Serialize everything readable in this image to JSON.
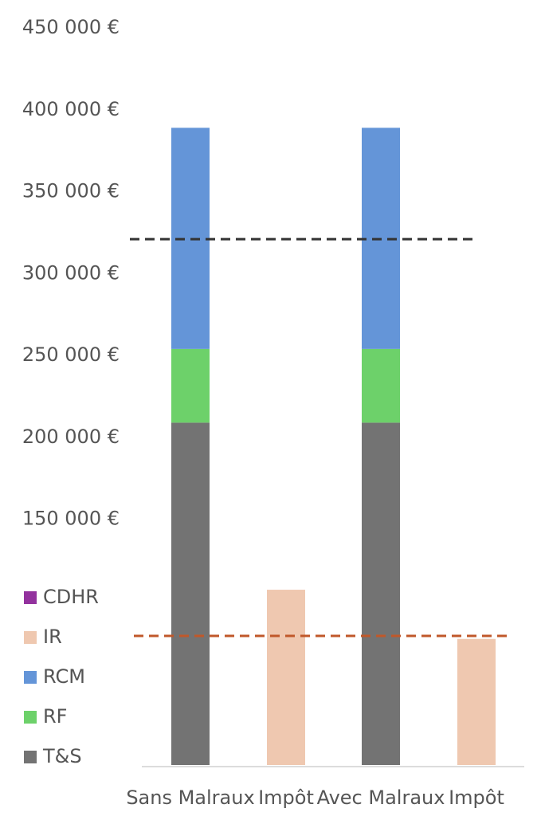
{
  "chart_data": {
    "type": "stacked_bar",
    "categories": [
      "Sans Malraux",
      "Impôt",
      "Avec Malraux",
      "Impôt"
    ],
    "series": [
      {
        "name": "T&S",
        "color": "#737373",
        "values": [
          209000,
          null,
          209000,
          null
        ]
      },
      {
        "name": "RF",
        "color": "#6dd16a",
        "values": [
          45000,
          null,
          45000,
          null
        ]
      },
      {
        "name": "RCM",
        "color": "#6495d8",
        "values": [
          135000,
          null,
          135000,
          null
        ]
      },
      {
        "name": "IR",
        "color": "#efc8b0",
        "values": [
          null,
          107000,
          null,
          77000
        ]
      },
      {
        "name": "CDHR",
        "color": "#93329e",
        "values": [
          null,
          null,
          null,
          null
        ]
      }
    ],
    "ylim": [
      0,
      450000
    ],
    "yticks": [
      {
        "value": 150000,
        "label": "150 000 €"
      },
      {
        "value": 200000,
        "label": "200 000 €"
      },
      {
        "value": 250000,
        "label": "250 000 €"
      },
      {
        "value": 300000,
        "label": "300 000 €"
      },
      {
        "value": 350000,
        "label": "350 000 €"
      },
      {
        "value": 400000,
        "label": "400 000 €"
      },
      {
        "value": 450000,
        "label": "450 000 €"
      }
    ],
    "reference_lines": [
      {
        "value": 321000,
        "color": "#333333"
      },
      {
        "value": 78800,
        "color": "#c0582a"
      }
    ],
    "legend": "bottom-left"
  }
}
